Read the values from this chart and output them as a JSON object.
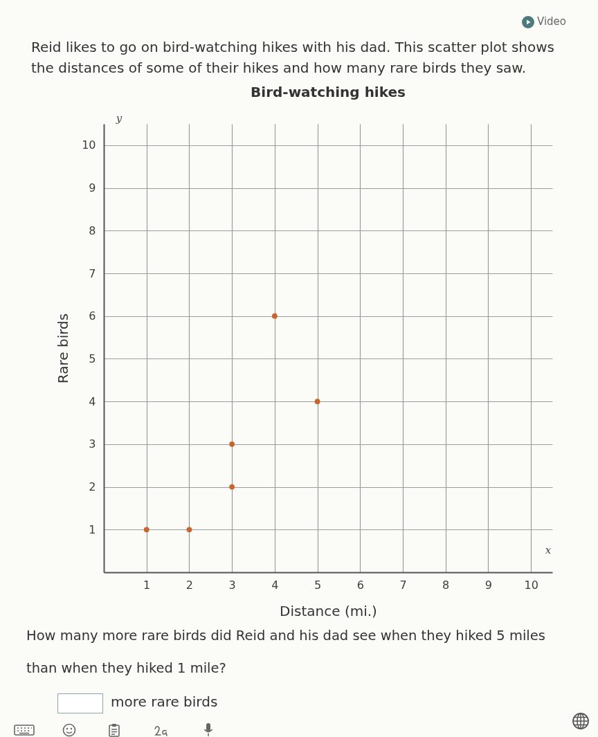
{
  "chart_data": {
    "type": "scatter",
    "title": "Bird-watching hikes",
    "xlabel": "Distance (mi.)",
    "ylabel": "Rare birds",
    "x": [
      1,
      2,
      3,
      3,
      4,
      5
    ],
    "values": [
      1,
      1,
      2,
      3,
      6,
      4
    ],
    "color": "#c8642c",
    "xlim": [
      0,
      10.5
    ],
    "ylim": [
      0,
      10.5
    ],
    "xticks": [
      1,
      2,
      3,
      4,
      5,
      6,
      7,
      8,
      9,
      10
    ],
    "yticks": [
      1,
      2,
      3,
      4,
      5,
      6,
      7,
      8,
      9,
      10
    ],
    "grid": true,
    "marker": "circle",
    "annotations": [
      "Reid likes to go on bird-watching hikes with his dad. This scatter plot shows the distances of some of their hikes and how many rare birds they saw.",
      "Video",
      "y",
      "x",
      "How many more rare birds did Reid and his dad see when they hiked 5 miles than when they hiked 1 mile?",
      "more rare birds"
    ]
  }
}
